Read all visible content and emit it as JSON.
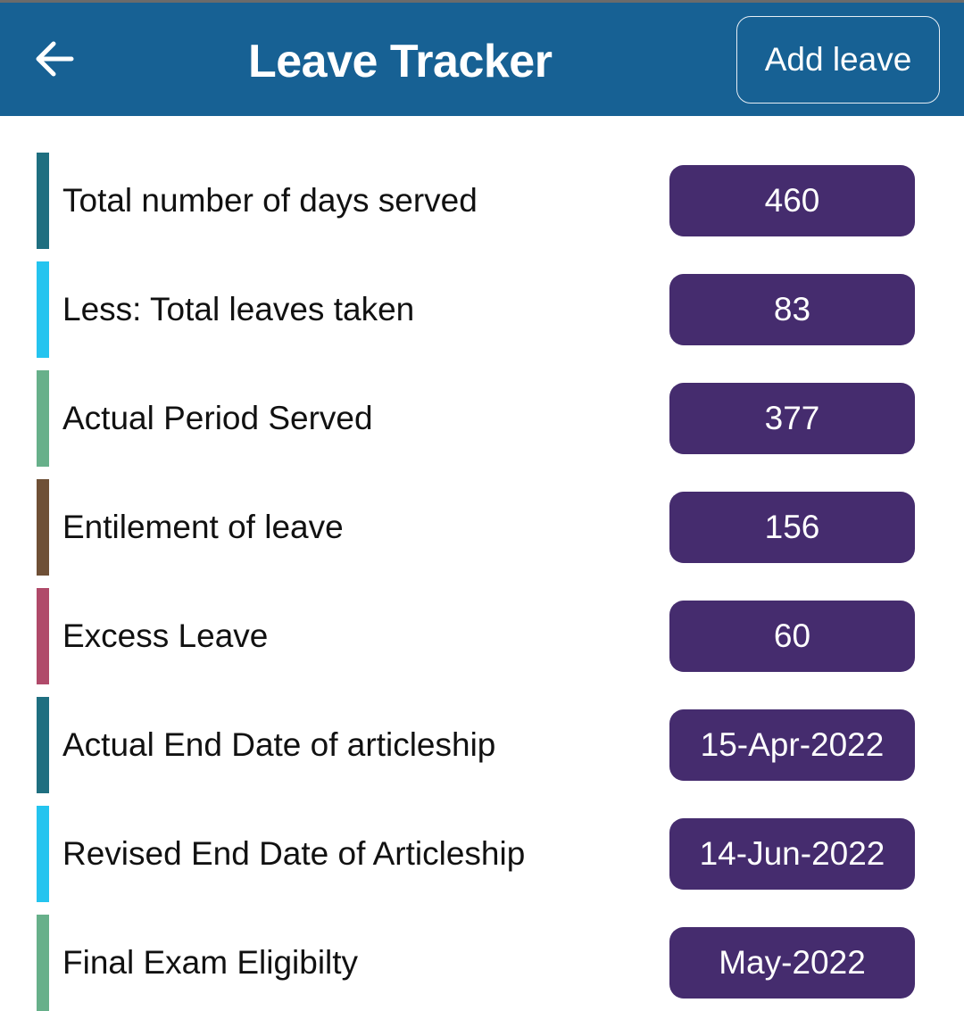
{
  "header": {
    "title": "Leave Tracker",
    "add_leave_label": "Add leave",
    "back_icon": "arrow-left-icon",
    "background": "#176194"
  },
  "rows": [
    {
      "label": "Total number of days served",
      "value": "460",
      "color": "#1f6f80"
    },
    {
      "label": "Less: Total leaves taken",
      "value": "83",
      "color": "#24c4ef"
    },
    {
      "label": "Actual Period Served",
      "value": "377",
      "color": "#67b08a"
    },
    {
      "label": "Entilement of leave",
      "value": "156",
      "color": "#6f5036"
    },
    {
      "label": "Excess Leave",
      "value": "60",
      "color": "#b04a6a"
    },
    {
      "label": "Actual End Date of articleship",
      "value": "15-Apr-2022",
      "color": "#1f6f80"
    },
    {
      "label": "Revised End Date of Articleship",
      "value": "14-Jun-2022",
      "color": "#24c4ef"
    },
    {
      "label": "Final Exam Eligibilty",
      "value": "May-2022",
      "color": "#67b08a"
    }
  ],
  "pill_color": "#452c6e"
}
